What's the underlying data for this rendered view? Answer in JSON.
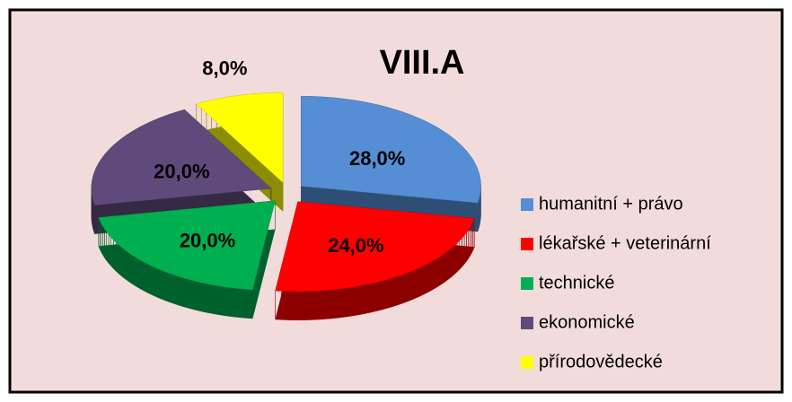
{
  "chart_data": {
    "type": "pie",
    "title": "VIII.A",
    "categories": [
      "humanitní + právo",
      "lékařské + veterinární",
      "technické",
      "ekonomické",
      "přírodovědecké"
    ],
    "values": [
      28,
      24,
      20,
      20,
      8
    ],
    "value_labels": [
      "28,0%",
      "24,0%",
      "20,0%",
      "20,0%",
      "8,0%"
    ],
    "colors": [
      "#558ed5",
      "#ff0000",
      "#00b050",
      "#604a7b",
      "#ffff00"
    ],
    "legend": "right"
  }
}
